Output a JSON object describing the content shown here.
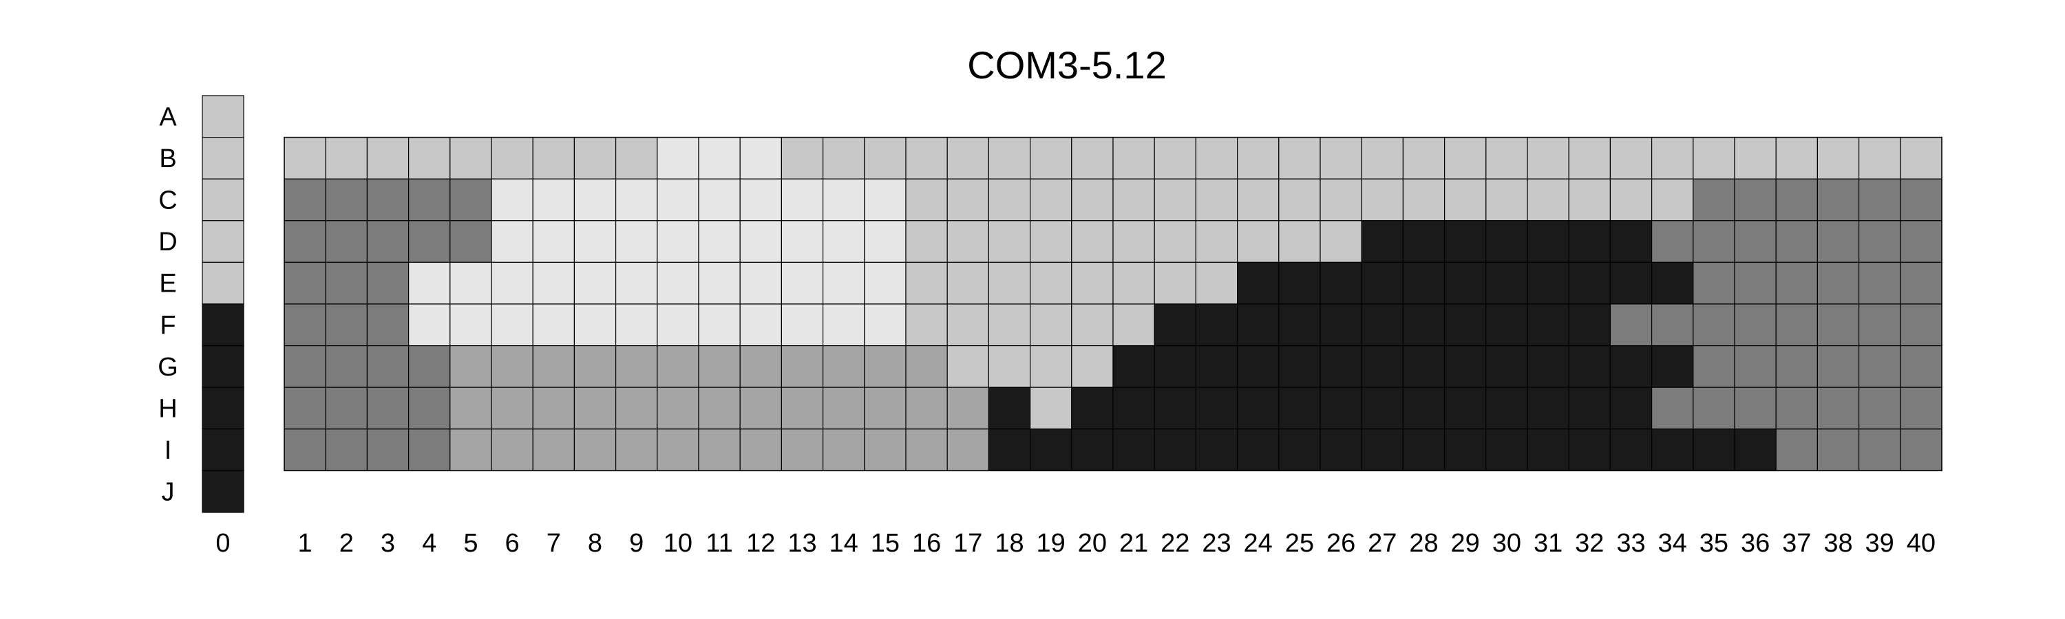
{
  "title": "COM3-5.12",
  "row_labels": [
    "A",
    "B",
    "C",
    "D",
    "E",
    "F",
    "G",
    "H",
    "I",
    "J"
  ],
  "reference_column": {
    "label": "0",
    "rows": [
      "A",
      "B",
      "C",
      "D",
      "E",
      "F",
      "G",
      "H",
      "I",
      "J"
    ],
    "values": [
      1,
      1,
      1,
      1,
      1,
      4,
      4,
      4,
      4,
      4
    ]
  },
  "grid": {
    "rows": [
      "B",
      "C",
      "D",
      "E",
      "F",
      "G",
      "H",
      "I"
    ],
    "columns": [
      "1",
      "2",
      "3",
      "4",
      "5",
      "6",
      "7",
      "8",
      "9",
      "10",
      "11",
      "12",
      "13",
      "14",
      "15",
      "16",
      "17",
      "18",
      "19",
      "20",
      "21",
      "22",
      "23",
      "24",
      "25",
      "26",
      "27",
      "28",
      "29",
      "30",
      "31",
      "32",
      "33",
      "34",
      "35",
      "36",
      "37",
      "38",
      "39",
      "40"
    ],
    "values": [
      [
        1,
        1,
        1,
        1,
        1,
        1,
        1,
        1,
        1,
        0,
        0,
        0,
        1,
        1,
        1,
        1,
        1,
        1,
        1,
        1,
        1,
        1,
        1,
        1,
        1,
        1,
        1,
        1,
        1,
        1,
        1,
        1,
        1,
        1,
        1,
        1,
        1,
        1,
        1,
        1
      ],
      [
        3,
        3,
        3,
        3,
        3,
        0,
        0,
        0,
        0,
        0,
        0,
        0,
        0,
        0,
        0,
        1,
        1,
        1,
        1,
        1,
        1,
        1,
        1,
        1,
        1,
        1,
        1,
        1,
        1,
        1,
        1,
        1,
        1,
        1,
        3,
        3,
        3,
        3,
        3,
        3
      ],
      [
        3,
        3,
        3,
        3,
        3,
        0,
        0,
        0,
        0,
        0,
        0,
        0,
        0,
        0,
        0,
        1,
        1,
        1,
        1,
        1,
        1,
        1,
        1,
        1,
        1,
        1,
        4,
        4,
        4,
        4,
        4,
        4,
        4,
        3,
        3,
        3,
        3,
        3,
        3,
        3
      ],
      [
        3,
        3,
        3,
        0,
        0,
        0,
        0,
        0,
        0,
        0,
        0,
        0,
        0,
        0,
        0,
        1,
        1,
        1,
        1,
        1,
        1,
        1,
        1,
        4,
        4,
        4,
        4,
        4,
        4,
        4,
        4,
        4,
        4,
        4,
        3,
        3,
        3,
        3,
        3,
        3
      ],
      [
        3,
        3,
        3,
        0,
        0,
        0,
        0,
        0,
        0,
        0,
        0,
        0,
        0,
        0,
        0,
        1,
        1,
        1,
        1,
        1,
        1,
        4,
        4,
        4,
        4,
        4,
        4,
        4,
        4,
        4,
        4,
        4,
        3,
        3,
        3,
        3,
        3,
        3,
        3,
        3
      ],
      [
        3,
        3,
        3,
        3,
        2,
        2,
        2,
        2,
        2,
        2,
        2,
        2,
        2,
        2,
        2,
        2,
        1,
        1,
        1,
        1,
        4,
        4,
        4,
        4,
        4,
        4,
        4,
        4,
        4,
        4,
        4,
        4,
        4,
        4,
        3,
        3,
        3,
        3,
        3,
        3
      ],
      [
        3,
        3,
        3,
        3,
        2,
        2,
        2,
        2,
        2,
        2,
        2,
        2,
        2,
        2,
        2,
        2,
        2,
        4,
        1,
        4,
        4,
        4,
        4,
        4,
        4,
        4,
        4,
        4,
        4,
        4,
        4,
        4,
        4,
        3,
        3,
        3,
        3,
        3,
        3,
        3
      ],
      [
        3,
        3,
        3,
        3,
        2,
        2,
        2,
        2,
        2,
        2,
        2,
        2,
        2,
        2,
        2,
        2,
        2,
        4,
        4,
        4,
        4,
        4,
        4,
        4,
        4,
        4,
        4,
        4,
        4,
        4,
        4,
        4,
        4,
        4,
        4,
        4,
        3,
        3,
        3,
        3
      ]
    ]
  },
  "palette": [
    "#e6e6e6",
    "#c8c8c8",
    "#a5a5a5",
    "#7c7c7c",
    "#1a1a1a"
  ]
}
